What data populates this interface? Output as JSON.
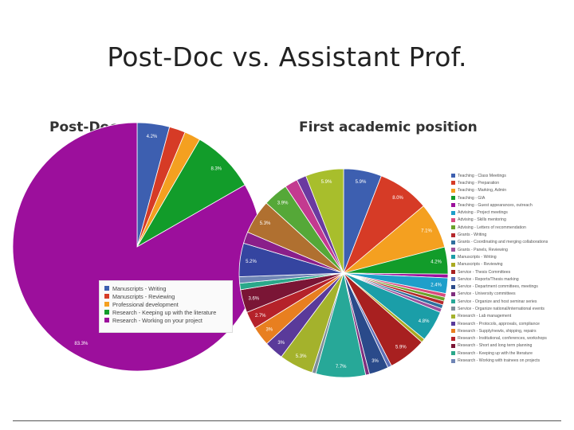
{
  "slide": {
    "title": "Post-Doc vs. Assistant Prof."
  },
  "chart_data": [
    {
      "type": "pie",
      "title": "Post-Doc",
      "legend_position": "inside-lower-right",
      "slices": [
        {
          "name": "Manuscripts - Writing",
          "value": 4.2,
          "color": "#3d5fb0",
          "label": "4.2%"
        },
        {
          "name": "Manuscripts - Reviewing",
          "value": 2.1,
          "color": "#d63b26",
          "label": ""
        },
        {
          "name": "Professional development",
          "value": 2.1,
          "color": "#f4a020",
          "label": ""
        },
        {
          "name": "Research - Keeping up with the literature",
          "value": 8.3,
          "color": "#129c2a",
          "label": "8.3%"
        },
        {
          "name": "Research - Working on your project",
          "value": 83.3,
          "color": "#9c0f9c",
          "label": "83.3%"
        }
      ]
    },
    {
      "type": "pie",
      "title": "First academic position",
      "legend_position": "right",
      "slices": [
        {
          "name": "Teaching - Class Meetings",
          "value": 5.9,
          "color": "#3d5fb0",
          "label": "5.9%"
        },
        {
          "name": "Teaching - Preparation",
          "value": 8.0,
          "color": "#d63b26",
          "label": "8.0%"
        },
        {
          "name": "Teaching - Marking, Admin",
          "value": 7.1,
          "color": "#f4a020",
          "label": "7.1%"
        },
        {
          "name": "Teaching - GIA",
          "value": 4.2,
          "color": "#129c2a",
          "label": "4.2%"
        },
        {
          "name": "Teaching - Guest appearances, outreach",
          "value": 0.6,
          "color": "#9c0f9c",
          "label": ""
        },
        {
          "name": "Advising - Project meetings",
          "value": 2.4,
          "color": "#1e9fca",
          "label": "2.4%"
        },
        {
          "name": "Advising - Skills mentoring",
          "value": 0.6,
          "color": "#d84b7e",
          "label": ""
        },
        {
          "name": "Advising - Letters of recommendation",
          "value": 0.6,
          "color": "#6aa22a",
          "label": ""
        },
        {
          "name": "Grants - Writing",
          "value": 0.6,
          "color": "#b5282c",
          "label": ""
        },
        {
          "name": "Grants - Coordinating and merging collaborations",
          "value": 0.6,
          "color": "#2f6f9e",
          "label": ""
        },
        {
          "name": "Grants - Panels, Reviewing",
          "value": 0.6,
          "color": "#9c4f9c",
          "label": ""
        },
        {
          "name": "Manuscripts - Writing",
          "value": 4.8,
          "color": "#1b9ea8",
          "label": "4.8%"
        },
        {
          "name": "Manuscripts - Reviewing",
          "value": 0.6,
          "color": "#aaaa22",
          "label": ""
        },
        {
          "name": "Service - Thesis Committees",
          "value": 5.9,
          "color": "#a82020",
          "label": "5.9%"
        },
        {
          "name": "Service - Reports/Thesis marking",
          "value": 0.6,
          "color": "#5d6fb8",
          "label": ""
        },
        {
          "name": "Service - Department committees, meetings",
          "value": 3.0,
          "color": "#2a4a8a",
          "label": "3%"
        },
        {
          "name": "Service - University committees",
          "value": 0.6,
          "color": "#7f2e7e",
          "label": ""
        },
        {
          "name": "Service - Organize and host seminar series",
          "value": 7.7,
          "color": "#27a898",
          "label": "7.7%"
        },
        {
          "name": "Service - Organize national/international events",
          "value": 0.6,
          "color": "#7f8d99",
          "label": ""
        },
        {
          "name": "Research - Lab management",
          "value": 5.3,
          "color": "#a4b22c",
          "label": "5.3%"
        },
        {
          "name": "Research - Protocols, approvals, compliance",
          "value": 3.0,
          "color": "#5a3a9a",
          "label": "3%"
        },
        {
          "name": "Research - Supply/newts, shipping, repairs",
          "value": 3.0,
          "color": "#e87f20",
          "label": "3%"
        },
        {
          "name": "Research - Institutional, conferences, workshops",
          "value": 2.7,
          "color": "#b5222a",
          "label": "2.7%"
        },
        {
          "name": "Research - Short and long term planning",
          "value": 3.6,
          "color": "#7a1535",
          "label": "3.6%"
        },
        {
          "name": "Research - Keeping up with the literature",
          "value": 1.0,
          "color": "#2aa88a",
          "label": ""
        },
        {
          "name": "Research - Working with trainees on projects",
          "value": 1.0,
          "color": "#6f85b5",
          "label": ""
        },
        {
          "name": "",
          "value": 5.2,
          "color": "#3545a0",
          "label": "5.2%"
        },
        {
          "name": "",
          "value": 1.8,
          "color": "#8a1f8a",
          "label": ""
        },
        {
          "name": "",
          "value": 5.3,
          "color": "#b07030",
          "label": "5.3%"
        },
        {
          "name": "",
          "value": 3.9,
          "color": "#55a838",
          "label": "3.9%"
        },
        {
          "name": "",
          "value": 2.0,
          "color": "#c33a90",
          "label": ""
        },
        {
          "name": "",
          "value": 1.5,
          "color": "#6a3aa0",
          "label": ""
        },
        {
          "name": "",
          "value": 5.9,
          "color": "#a8be2c",
          "label": "5.9%"
        }
      ]
    }
  ]
}
